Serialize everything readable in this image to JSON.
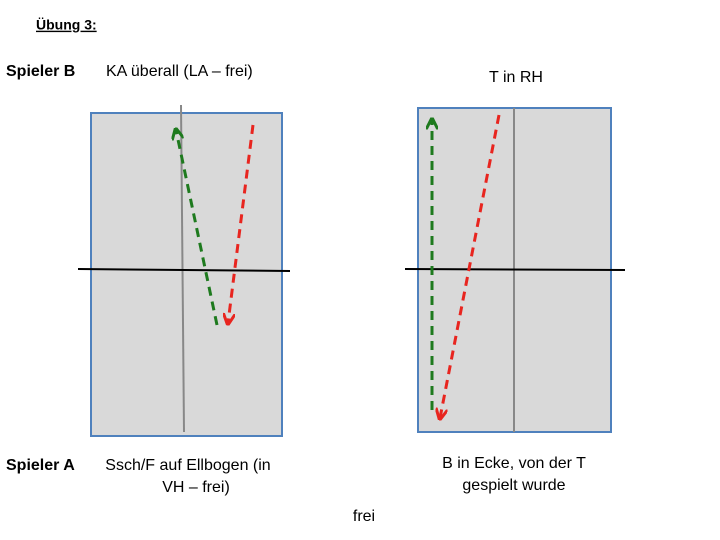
{
  "header": {
    "title": "Übung 3:"
  },
  "player_b": {
    "label": "Spieler B",
    "left_note": "KA überall (LA – frei)",
    "right_note": "T in RH"
  },
  "player_a": {
    "label": "Spieler A",
    "left_note": [
      "Ssch/F auf Ellbogen (in",
      "VH – frei)"
    ],
    "right_note": [
      "B in Ecke, von der T",
      "gespielt wurde"
    ]
  },
  "footer": {
    "note": "frei"
  }
}
